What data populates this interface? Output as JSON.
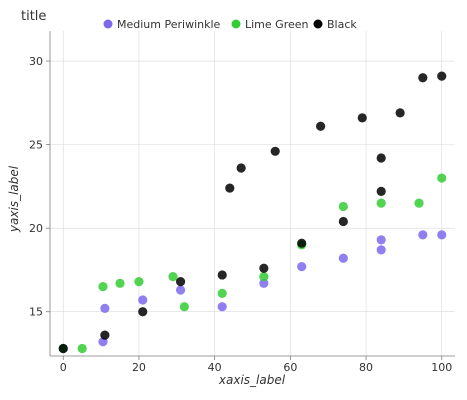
{
  "chart_data": {
    "type": "scatter",
    "title": "title",
    "xlabel": "xaxis_label",
    "ylabel": "yaxis_label",
    "xlim": [
      -3.5,
      103.5
    ],
    "ylim": [
      12.35,
      31.8
    ],
    "x_ticks": [
      0,
      20,
      40,
      60,
      80,
      100
    ],
    "y_ticks": [
      15,
      20,
      25,
      30
    ],
    "grid": true,
    "legend_position": "top",
    "series": [
      {
        "name": "Medium Periwinkle",
        "color": "#7b68ee",
        "points": [
          [
            0,
            12.8
          ],
          [
            10.5,
            13.2
          ],
          [
            11,
            15.2
          ],
          [
            21,
            15.7
          ],
          [
            31,
            16.3
          ],
          [
            42,
            15.3
          ],
          [
            53,
            16.7
          ],
          [
            63,
            17.7
          ],
          [
            74,
            18.2
          ],
          [
            84,
            18.7
          ],
          [
            84,
            19.3
          ],
          [
            95,
            19.6
          ],
          [
            100,
            19.6
          ]
        ]
      },
      {
        "name": "Lime Green",
        "color": "#32cd32",
        "points": [
          [
            0,
            12.8
          ],
          [
            5,
            12.8
          ],
          [
            10.5,
            16.5
          ],
          [
            15,
            16.7
          ],
          [
            20,
            16.8
          ],
          [
            29,
            17.1
          ],
          [
            32,
            15.3
          ],
          [
            42,
            16.1
          ],
          [
            53,
            17.1
          ],
          [
            63,
            19.0
          ],
          [
            74,
            21.3
          ],
          [
            84,
            21.5
          ],
          [
            94,
            21.5
          ],
          [
            100,
            23.0
          ]
        ]
      },
      {
        "name": "Black",
        "color": "#000000",
        "points": [
          [
            0,
            12.8
          ],
          [
            11,
            13.6
          ],
          [
            21,
            15.0
          ],
          [
            31,
            16.8
          ],
          [
            42,
            17.2
          ],
          [
            53,
            17.6
          ],
          [
            63,
            19.1
          ],
          [
            74,
            20.4
          ],
          [
            84,
            22.2
          ],
          [
            84,
            24.2
          ],
          [
            95,
            29.0
          ],
          [
            100,
            29.1
          ],
          [
            44,
            22.4
          ],
          [
            47,
            23.6
          ],
          [
            56,
            24.6
          ],
          [
            68,
            26.1
          ],
          [
            79,
            26.6
          ],
          [
            89,
            26.9
          ]
        ]
      }
    ]
  }
}
